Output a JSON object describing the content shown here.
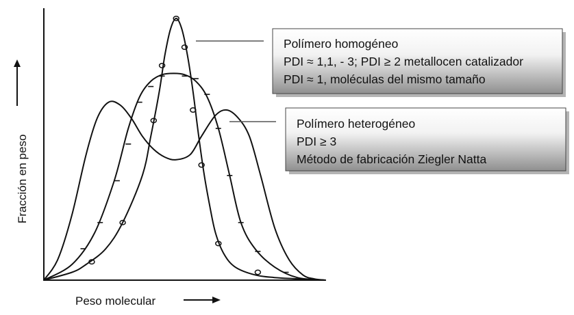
{
  "chart_data": {
    "type": "line",
    "title": "",
    "xlabel": "Peso molecular",
    "ylabel": "Fracción en peso",
    "xlim": [
      0,
      100
    ],
    "ylim": [
      0,
      100
    ],
    "series": [
      {
        "name": "homogeneous-curve",
        "marker": "circle",
        "x": [
          0,
          10,
          15,
          22,
          28,
          35,
          38,
          41,
          43,
          45,
          47,
          49,
          51,
          53,
          55,
          57,
          59,
          61,
          64,
          68,
          75,
          82,
          90,
          100
        ],
        "y": [
          0,
          3,
          6,
          12,
          22,
          40,
          55,
          72,
          86,
          96,
          100,
          96,
          86,
          72,
          55,
          40,
          28,
          18,
          10,
          5,
          2,
          1,
          0.5,
          0
        ],
        "marker_x": [
          17,
          28,
          39,
          42,
          47,
          50,
          53,
          56,
          62,
          76
        ],
        "marker_y": [
          7,
          22,
          61,
          82,
          100,
          89,
          65,
          44,
          14,
          3
        ]
      },
      {
        "name": "broad-curve",
        "marker": "tick",
        "x": [
          0,
          10,
          18,
          25,
          30,
          34,
          38,
          42,
          46,
          50,
          54,
          58,
          62,
          66,
          70,
          75,
          82,
          90,
          100
        ],
        "y": [
          0,
          6,
          18,
          38,
          58,
          70,
          76,
          78.5,
          79,
          78.5,
          76,
          70,
          58,
          40,
          22,
          12,
          5,
          1,
          0
        ],
        "marker_x": [
          14,
          20,
          26,
          30,
          34,
          38,
          42,
          46,
          50,
          54,
          58,
          62,
          66,
          70,
          76,
          86
        ],
        "marker_y": [
          12,
          22,
          38,
          52,
          68,
          74,
          78,
          79,
          78,
          77,
          71,
          58,
          40,
          22,
          11,
          3
        ]
      },
      {
        "name": "heterogeneous-curve",
        "marker": "none",
        "x": [
          0,
          5,
          10,
          15,
          19,
          23,
          27,
          31,
          35,
          39,
          43,
          47,
          52,
          56,
          61,
          65,
          69,
          73,
          77,
          82,
          87,
          92,
          96,
          100
        ],
        "y": [
          0,
          8,
          25,
          48,
          62,
          68,
          67,
          62,
          55,
          50,
          47,
          46,
          48,
          55,
          63,
          65,
          62,
          55,
          40,
          20,
          8,
          2,
          0.5,
          0
        ]
      }
    ],
    "annotations": [
      {
        "title": "Polímero homogéneo",
        "lines": [
          "PDI ≈ 1,1, - 3; PDI ≥ 2 metallocen catalizador",
          "PDI ≈ 1, moléculas del mismo tamaño"
        ],
        "points_to": "homogeneous-curve"
      },
      {
        "title": "Polímero heterogéneo",
        "lines": [
          "PDI ≥ 3",
          "Método de fabricación Ziegler Natta"
        ],
        "points_to": "broad-curve"
      }
    ]
  }
}
